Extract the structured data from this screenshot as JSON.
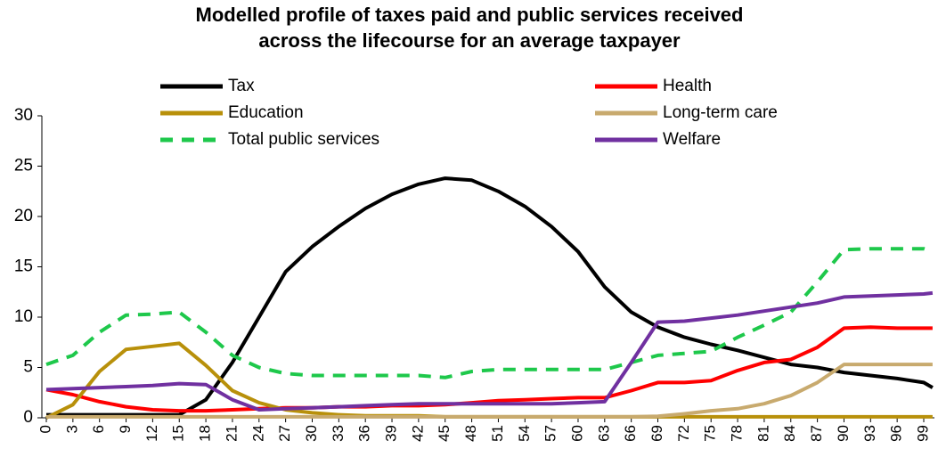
{
  "chart_data": {
    "type": "line",
    "title": [
      "Modelled profile of taxes paid and public services received",
      "across the lifecourse for an average taxpayer"
    ],
    "x": [
      0,
      3,
      6,
      9,
      12,
      15,
      18,
      21,
      24,
      27,
      30,
      33,
      36,
      39,
      42,
      45,
      48,
      51,
      54,
      57,
      60,
      63,
      66,
      69,
      72,
      75,
      78,
      81,
      84,
      87,
      90,
      93,
      96,
      99,
      100
    ],
    "xlim": [
      0,
      100
    ],
    "xticks": [
      0,
      3,
      6,
      9,
      12,
      15,
      18,
      21,
      24,
      27,
      30,
      33,
      36,
      39,
      42,
      45,
      48,
      51,
      54,
      57,
      60,
      63,
      66,
      69,
      72,
      75,
      78,
      81,
      84,
      87,
      90,
      93,
      96,
      99
    ],
    "ylim": [
      0,
      30
    ],
    "yticks": [
      0,
      5,
      10,
      15,
      20,
      25,
      30
    ],
    "series": [
      {
        "name": "Tax",
        "color": "#000000",
        "style": "solid",
        "values": [
          0.3,
          0.3,
          0.3,
          0.3,
          0.3,
          0.3,
          1.8,
          5.5,
          10,
          14.5,
          17,
          19,
          20.8,
          22.2,
          23.2,
          23.8,
          23.6,
          22.5,
          21,
          19,
          16.5,
          13,
          10.5,
          9,
          8,
          7.3,
          6.7,
          6,
          5.3,
          5,
          4.5,
          4.2,
          3.9,
          3.5,
          3
        ]
      },
      {
        "name": "Health",
        "color": "#ff0000",
        "style": "solid",
        "values": [
          2.8,
          2.3,
          1.6,
          1.1,
          0.8,
          0.7,
          0.7,
          0.8,
          0.9,
          1,
          1,
          1.1,
          1.1,
          1.2,
          1.2,
          1.3,
          1.5,
          1.7,
          1.8,
          1.9,
          2,
          2,
          2.7,
          3.5,
          3.5,
          3.7,
          4.7,
          5.5,
          5.8,
          7,
          8.9,
          9,
          8.9,
          8.9,
          8.9
        ]
      },
      {
        "name": "Education",
        "color": "#b8900a",
        "style": "solid",
        "values": [
          0,
          1.3,
          4.6,
          6.8,
          7.1,
          7.4,
          5.2,
          2.7,
          1.5,
          0.8,
          0.5,
          0.3,
          0.2,
          0.2,
          0.2,
          0.1,
          0.1,
          0.1,
          0.1,
          0.1,
          0.1,
          0.1,
          0.1,
          0.1,
          0.1,
          0.1,
          0.1,
          0.1,
          0.1,
          0.1,
          0.1,
          0.1,
          0.1,
          0.1,
          0.1
        ]
      },
      {
        "name": "Long-term care",
        "color": "#c8aa6e",
        "style": "solid",
        "values": [
          0.1,
          0.1,
          0.1,
          0.1,
          0.1,
          0.1,
          0.1,
          0.1,
          0.1,
          0.1,
          0.1,
          0.1,
          0.1,
          0.1,
          0.1,
          0.1,
          0.1,
          0.1,
          0.1,
          0.1,
          0.1,
          0.1,
          0.1,
          0.15,
          0.4,
          0.7,
          0.9,
          1.4,
          2.2,
          3.5,
          5.3,
          5.3,
          5.3,
          5.3,
          5.3
        ]
      },
      {
        "name": "Total public services",
        "color": "#1ec84b",
        "style": "dashed",
        "values": [
          5.3,
          6.2,
          8.5,
          10.2,
          10.3,
          10.5,
          8.5,
          6.2,
          5,
          4.4,
          4.2,
          4.2,
          4.2,
          4.2,
          4.2,
          4,
          4.6,
          4.8,
          4.8,
          4.8,
          4.8,
          4.8,
          5.5,
          6.2,
          6.4,
          6.6,
          8,
          9.2,
          10.5,
          13.5,
          16.7,
          16.8,
          16.8,
          16.8,
          16.5
        ]
      },
      {
        "name": "Welfare",
        "color": "#7030a0",
        "style": "solid",
        "values": [
          2.8,
          2.9,
          3,
          3.1,
          3.2,
          3.4,
          3.3,
          1.8,
          0.8,
          0.9,
          1,
          1.1,
          1.2,
          1.3,
          1.4,
          1.4,
          1.4,
          1.4,
          1.4,
          1.4,
          1.5,
          1.6,
          5.5,
          9.5,
          9.6,
          9.9,
          10.2,
          10.6,
          11,
          11.4,
          12,
          12.1,
          12.2,
          12.3,
          12.4
        ]
      }
    ]
  }
}
